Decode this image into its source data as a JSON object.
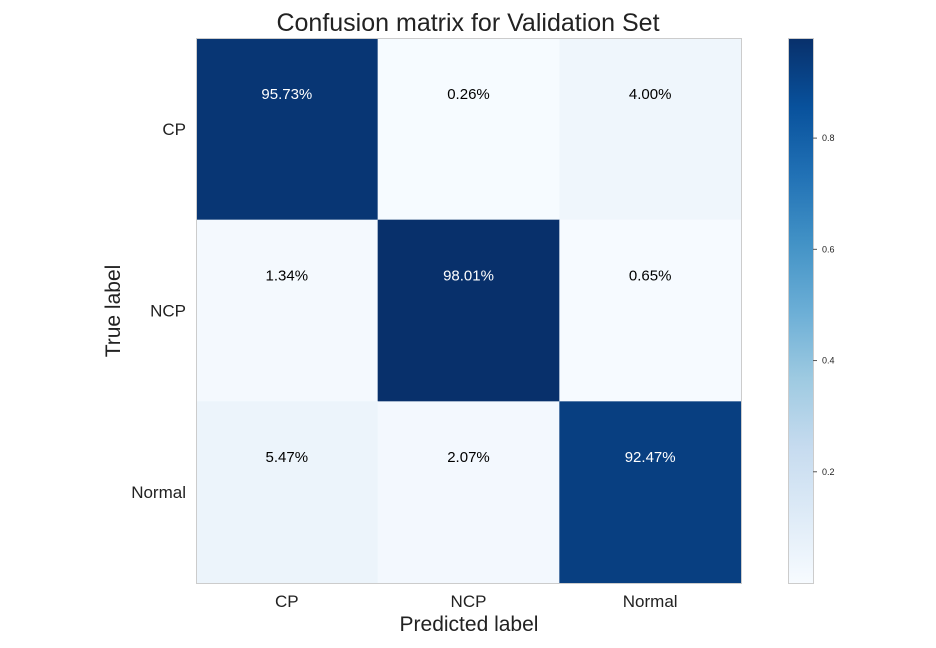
{
  "chart_data": {
    "type": "heatmap",
    "title": "Confusion matrix for Validation Set",
    "xlabel": "Predicted label",
    "ylabel": "True label",
    "x_categories": [
      "CP",
      "NCP",
      "Normal"
    ],
    "y_categories": [
      "CP",
      "NCP",
      "Normal"
    ],
    "values": [
      [
        0.9573,
        0.0026,
        0.04
      ],
      [
        0.0134,
        0.9801,
        0.0065
      ],
      [
        0.0547,
        0.0207,
        0.9247
      ]
    ],
    "cell_labels": [
      [
        "95.73%",
        "0.26%",
        "4.00%"
      ],
      [
        "1.34%",
        "98.01%",
        "0.65%"
      ],
      [
        "5.47%",
        "2.07%",
        "92.47%"
      ]
    ],
    "colormap": "Blues",
    "colorbar": {
      "range": [
        0.0,
        0.98
      ],
      "ticks": [
        0.2,
        0.4,
        0.6,
        0.8
      ],
      "tick_labels": [
        "0.2",
        "0.4",
        "0.6",
        "0.8"
      ]
    },
    "grid": false
  }
}
